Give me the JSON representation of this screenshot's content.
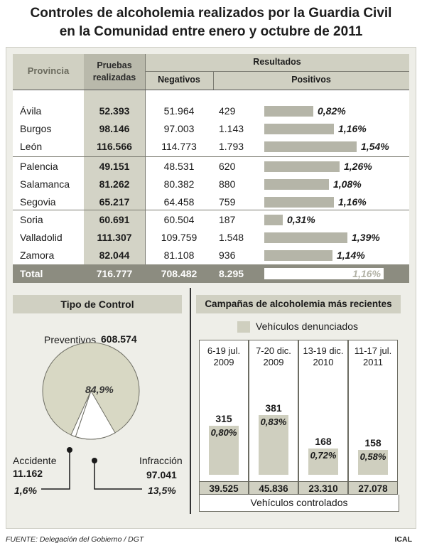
{
  "title": {
    "line1": "Controles de alcoholemia realizados por la Guardia Civil",
    "line2": "en la Comunidad entre enero y octubre de 2011"
  },
  "table": {
    "headers": {
      "provincia": "Provincia",
      "pruebas_line1": "Pruebas",
      "pruebas_line2": "realizadas",
      "resultados": "Resultados",
      "negativos": "Negativos",
      "positivos": "Positivos"
    },
    "rows": [
      {
        "provincia": "Ávila",
        "pruebas": "52.393",
        "negativos": "51.964",
        "positivos": "429",
        "pct": "0,82%",
        "pct_value": 0.82
      },
      {
        "provincia": "Burgos",
        "pruebas": "98.146",
        "negativos": "97.003",
        "positivos": "1.143",
        "pct": "1,16%",
        "pct_value": 1.16
      },
      {
        "provincia": "León",
        "pruebas": "116.566",
        "negativos": "114.773",
        "positivos": "1.793",
        "pct": "1,54%",
        "pct_value": 1.54
      },
      {
        "provincia": "Palencia",
        "pruebas": "49.151",
        "negativos": "48.531",
        "positivos": "620",
        "pct": "1,26%",
        "pct_value": 1.26
      },
      {
        "provincia": "Salamanca",
        "pruebas": "81.262",
        "negativos": "80.382",
        "positivos": "880",
        "pct": "1,08%",
        "pct_value": 1.08
      },
      {
        "provincia": "Segovia",
        "pruebas": "65.217",
        "negativos": "64.458",
        "positivos": "759",
        "pct": "1,16%",
        "pct_value": 1.16
      },
      {
        "provincia": "Soria",
        "pruebas": "60.691",
        "negativos": "60.504",
        "positivos": "187",
        "pct": "0,31%",
        "pct_value": 0.31
      },
      {
        "provincia": "Valladolid",
        "pruebas": "111.307",
        "negativos": "109.759",
        "positivos": "1.548",
        "pct": "1,39%",
        "pct_value": 1.39
      },
      {
        "provincia": "Zamora",
        "pruebas": "82.044",
        "negativos": "81.108",
        "positivos": "936",
        "pct": "1,14%",
        "pct_value": 1.14
      }
    ],
    "total": {
      "label": "Total",
      "pruebas": "716.777",
      "negativos": "708.482",
      "positivos": "8.295",
      "pct": "1,16%"
    }
  },
  "tipo_control": {
    "title": "Tipo de Control",
    "preventivos_label": "Preventivos",
    "preventivos_value": "608.574",
    "preventivos_pct": "84,9%",
    "accidente_label": "Accidente",
    "accidente_value": "11.162",
    "accidente_pct": "1,6%",
    "infraccion_label": "Infracción",
    "infraccion_value": "97.041",
    "infraccion_pct": "13,5%"
  },
  "campanas": {
    "title": "Campañas de alcoholemia más recientes",
    "legend": "Vehículos denunciados",
    "footer": "Vehículos controlados",
    "items": [
      {
        "period_line1": "6-19 jul.",
        "period_line2": "2009",
        "denunciados": "315",
        "pct": "0,80%",
        "controlados": "39.525"
      },
      {
        "period_line1": "7-20 dic.",
        "period_line2": "2009",
        "denunciados": "381",
        "pct": "0,83%",
        "controlados": "45.836"
      },
      {
        "period_line1": "13-19 dic.",
        "period_line2": "2010",
        "denunciados": "168",
        "pct": "0,72%",
        "controlados": "23.310"
      },
      {
        "period_line1": "11-17 jul.",
        "period_line2": "2011",
        "denunciados": "158",
        "pct": "0,58%",
        "controlados": "27.078"
      }
    ]
  },
  "footer": {
    "source": "FUENTE: Delegación del Gobierno / DGT",
    "credit": "ICAL"
  },
  "colors": {
    "header_band": "#d0d0c2",
    "bar": "#b5b5a8",
    "total_row": "#8c8c80",
    "pie_fill": "#d8d8c4",
    "campaign_bar": "#cfcfbf"
  },
  "chart_data": [
    {
      "type": "bar",
      "categories": [
        "Ávila",
        "Burgos",
        "León",
        "Palencia",
        "Salamanca",
        "Segovia",
        "Soria",
        "Valladolid",
        "Zamora"
      ],
      "series": [
        {
          "name": "Positivos",
          "values": [
            0.82,
            1.16,
            1.54,
            1.26,
            1.08,
            1.16,
            0.31,
            1.39,
            1.14
          ]
        }
      ]
    },
    {
      "type": "pie",
      "title": "Tipo de Control",
      "categories": [
        "Preventivos",
        "Infracción",
        "Accidente"
      ],
      "values": [
        84.9,
        13.5,
        1.6
      ]
    },
    {
      "type": "bar",
      "title": "Campañas de alcoholemia más recientes",
      "categories": [
        "6-19 jul. 2009",
        "7-20 dic. 2009",
        "13-19 dic. 2010",
        "11-17 jul. 2011"
      ],
      "series": [
        {
          "name": "Vehículos denunciados",
          "values": [
            315,
            381,
            168,
            158
          ]
        },
        {
          "name": "Vehículos controlados",
          "values": [
            39525,
            45836,
            23310,
            27078
          ]
        }
      ]
    }
  ]
}
